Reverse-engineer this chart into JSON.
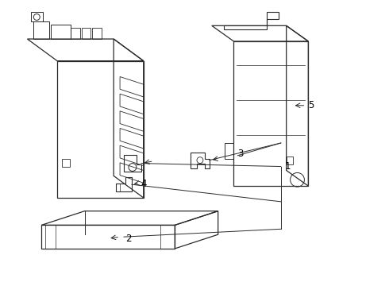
{
  "background_color": "#ffffff",
  "line_color": "#2a2a2a",
  "label_color": "#000000",
  "label_fontsize": 8.5,
  "fig_w": 4.9,
  "fig_h": 3.6,
  "dpi": 100
}
